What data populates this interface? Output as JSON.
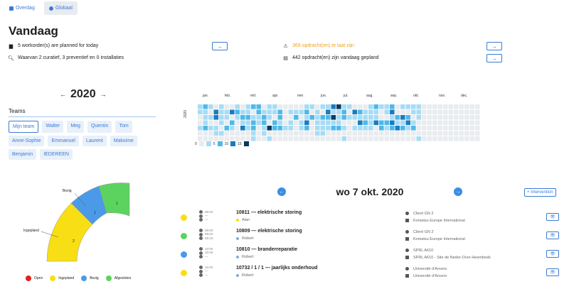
{
  "tabs": [
    {
      "label": "Overdag",
      "icon": "calendar-icon",
      "active": false
    },
    {
      "label": "Globaal",
      "icon": "pie-chart-icon",
      "active": true
    }
  ],
  "page_title": "Vandaag",
  "info": {
    "workorders": "5 workorder(s) are planned for today",
    "breakdown": "Waarvan 2 curatief, 3 preventief en 0 installaties",
    "late": "369 opdracht(en) te laat zijn",
    "planned": "442 opdracht(en) zijn vandaag gepland",
    "arrow": "→"
  },
  "year_nav": {
    "prev": "←",
    "year": "2020",
    "next": "→"
  },
  "teams": {
    "label": "Teams",
    "chips": [
      "Mijn team",
      "Walter",
      "Meg",
      "Quentin",
      "Tom",
      "Anne-Sophie",
      "Emmanuel",
      "Laurent",
      "Maksime",
      "Benjamin",
      "IEDEREEN"
    ]
  },
  "heatmap": {
    "year_label": "2020",
    "months": [
      "jan.",
      "feb.",
      "mrt.",
      "apr.",
      "mei",
      "jun.",
      "jul.",
      "aug.",
      "sep.",
      "okt.",
      "nov.",
      "dec."
    ],
    "legend": [
      "0",
      "5",
      "10",
      "15"
    ],
    "colors": [
      "#e9ecef",
      "#a7dcf5",
      "#4fb8e8",
      "#1a7cbf",
      "#0b3a5c"
    ]
  },
  "pie": {
    "labels": {
      "busy": "Bezig",
      "planned": "Ingepland"
    },
    "values": {
      "planned": "2",
      "busy": "1",
      "done": "1"
    },
    "legend": [
      {
        "label": "Open",
        "color": "#e0211b"
      },
      {
        "label": "Ingepland",
        "color": "#f8de14"
      },
      {
        "label": "Bezig",
        "color": "#4a9ae8"
      },
      {
        "label": "Afgesloten",
        "color": "#5cd35f"
      }
    ]
  },
  "day": {
    "title": "wo 7 okt. 2020",
    "prev": "←",
    "next": "→",
    "add_label": "+ Intervention"
  },
  "tasks": [
    {
      "status_color": "#f8de14",
      "times": [
        "09:00",
        "—",
        "—"
      ],
      "title": "10811 — elektrische storing",
      "tech": "Alan",
      "tech_color": "#f8de14",
      "client": "Client GN 2",
      "site": "Komatsu Europe International",
      "eye": "👁"
    },
    {
      "status_color": "#5cd35f",
      "times": [
        "09:00",
        "09:00",
        "09:43"
      ],
      "title": "10809 — elektrische storing",
      "tech": "Robert",
      "tech_color": "#8aa8d8",
      "client": "Client GN 2",
      "site": "Komatsu Europe International",
      "eye": "👁"
    },
    {
      "status_color": "#4a9ae8",
      "times": [
        "10:00",
        "10:46",
        "—"
      ],
      "title": "10810 — branderreparatie",
      "tech": "Robert",
      "tech_color": "#8aa8d8",
      "client": "SPRL A610",
      "site": "SPRL A610 - Site de Neder-Over-Heembeek",
      "eye": "👁"
    },
    {
      "status_color": "#f8de14",
      "times": [
        "10:00",
        "—",
        "—"
      ],
      "title": "10732 / 1 / 1 — jaarlijks onderhoud",
      "tech": "Robert",
      "tech_color": "#8aa8d8",
      "client": "Université d'Anvers",
      "site": "Université d'Anvers",
      "eye": "👁"
    }
  ]
}
